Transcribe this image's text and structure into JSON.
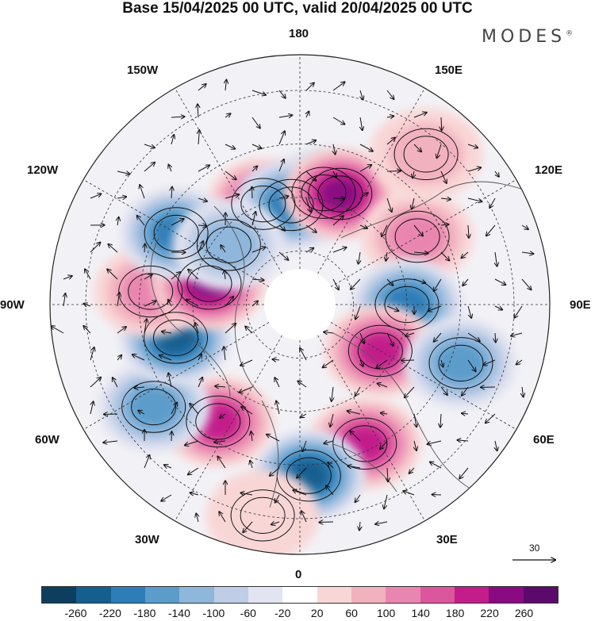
{
  "title": "Base 15/04/2025 00 UTC, valid 20/04/2025 00 UTC",
  "brand": {
    "name": "MODES",
    "mark": "®"
  },
  "longitude_labels": [
    "180",
    "150E",
    "120E",
    "90E",
    "60E",
    "30E",
    "0",
    "30W",
    "60W",
    "90W",
    "120W",
    "150W"
  ],
  "vector_scale": {
    "label": "30"
  },
  "colorbar": {
    "ticks": [
      "-260",
      "-220",
      "-180",
      "-140",
      "-100",
      "-60",
      "-20",
      "20",
      "60",
      "100",
      "140",
      "180",
      "220",
      "260"
    ],
    "colors": [
      "#0d3e5e",
      "#155f8f",
      "#2f7db8",
      "#5b9ccb",
      "#8fb6db",
      "#bfcde6",
      "#e3e4f1",
      "#ffffff",
      "#f9d6d6",
      "#f2b1bf",
      "#e986b0",
      "#dc569e",
      "#c21d8a",
      "#8a0a82",
      "#5b0a6b"
    ]
  },
  "anomaly_centers": [
    {
      "lon": 168,
      "lat": 58,
      "value": -150
    },
    {
      "lon": -160,
      "lat": 60,
      "value": 210
    },
    {
      "lon": -175,
      "lat": 62,
      "value": -200
    },
    {
      "lon": 160,
      "lat": 57,
      "value": 240
    },
    {
      "lon": 120,
      "lat": 52,
      "value": 100
    },
    {
      "lon": 90,
      "lat": 60,
      "value": -200
    },
    {
      "lon": 60,
      "lat": 64,
      "value": 200
    },
    {
      "lon": 70,
      "lat": 42,
      "value": -150
    },
    {
      "lon": 25,
      "lat": 47,
      "value": 180
    },
    {
      "lon": 3,
      "lat": 42,
      "value": -250
    },
    {
      "lon": -35,
      "lat": 50,
      "value": 200
    },
    {
      "lon": -55,
      "lat": 40,
      "value": -170
    },
    {
      "lon": -75,
      "lat": 54,
      "value": -220
    },
    {
      "lon": -95,
      "lat": 48,
      "value": 130
    },
    {
      "lon": -103,
      "lat": 64,
      "value": 220
    },
    {
      "lon": -120,
      "lat": 50,
      "value": -200
    },
    {
      "lon": -130,
      "lat": 64,
      "value": -130
    },
    {
      "lon": 140,
      "lat": 35,
      "value": 70
    },
    {
      "lon": -10,
      "lat": 30,
      "value": 40
    }
  ]
}
